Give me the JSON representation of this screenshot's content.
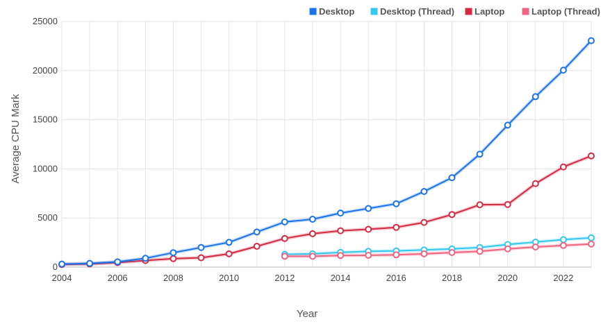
{
  "chart_data": {
    "type": "line",
    "title": "",
    "xlabel": "Year",
    "ylabel": "Average CPU Mark",
    "xlim": [
      2004,
      2023
    ],
    "ylim": [
      0,
      25000
    ],
    "x_ticks": [
      "2004",
      "2006",
      "2008",
      "2010",
      "2012",
      "2014",
      "2016",
      "2018",
      "2020",
      "2022"
    ],
    "y_ticks": [
      "0",
      "5000",
      "10000",
      "15000",
      "20000",
      "25000"
    ],
    "grid": true,
    "legend_position": "top-right",
    "series": [
      {
        "name": "Desktop",
        "color": "#1a73e8",
        "x": [
          2004,
          2005,
          2006,
          2007,
          2008,
          2009,
          2010,
          2011,
          2012,
          2013,
          2014,
          2015,
          2016,
          2017,
          2018,
          2019,
          2020,
          2021,
          2022,
          2023
        ],
        "values": [
          310,
          380,
          540,
          900,
          1470,
          2000,
          2520,
          3570,
          4600,
          4870,
          5500,
          5970,
          6450,
          7700,
          9100,
          11500,
          14450,
          17350,
          20050,
          23050
        ]
      },
      {
        "name": "Desktop (Thread)",
        "color": "#33c8ee",
        "x": [
          2012,
          2013,
          2014,
          2015,
          2016,
          2017,
          2018,
          2019,
          2020,
          2021,
          2022,
          2023
        ],
        "values": [
          1300,
          1350,
          1500,
          1600,
          1650,
          1750,
          1850,
          2000,
          2300,
          2550,
          2800,
          2980
        ]
      },
      {
        "name": "Laptop",
        "color": "#d42a43",
        "x": [
          2004,
          2005,
          2006,
          2007,
          2008,
          2009,
          2010,
          2011,
          2012,
          2013,
          2014,
          2015,
          2016,
          2017,
          2018,
          2019,
          2020,
          2021,
          2022,
          2023
        ],
        "values": [
          260,
          320,
          460,
          670,
          860,
          950,
          1350,
          2120,
          2920,
          3400,
          3700,
          3850,
          4050,
          4550,
          5350,
          6350,
          6380,
          8500,
          10200,
          11320
        ]
      },
      {
        "name": "Laptop (Thread)",
        "color": "#f26381",
        "x": [
          2012,
          2013,
          2014,
          2015,
          2016,
          2017,
          2018,
          2019,
          2020,
          2021,
          2022,
          2023
        ],
        "values": [
          1100,
          1100,
          1180,
          1200,
          1250,
          1350,
          1480,
          1600,
          1850,
          2050,
          2200,
          2350
        ]
      }
    ]
  }
}
